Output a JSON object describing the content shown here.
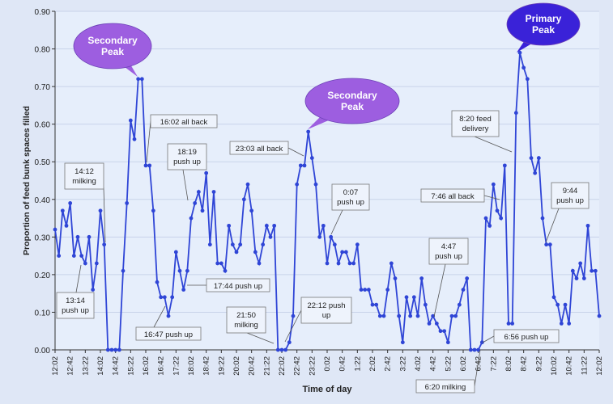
{
  "chart_data": {
    "type": "line",
    "title": "",
    "xlabel": "Time of day",
    "ylabel": "Proportion of feed bunk spaces filled",
    "ylim": [
      0,
      0.9
    ],
    "yticks": [
      "0.00",
      "0.10",
      "0.20",
      "0.30",
      "0.40",
      "0.50",
      "0.60",
      "0.70",
      "0.80",
      "0.90"
    ],
    "xticks": [
      "12:02",
      "12:42",
      "13:22",
      "14:02",
      "14:42",
      "15:22",
      "16:02",
      "16:42",
      "17:22",
      "18:02",
      "18:42",
      "19:22",
      "20:02",
      "20:42",
      "21:22",
      "22:02",
      "22:42",
      "23:22",
      "0:02",
      "0:42",
      "1:22",
      "2:02",
      "2:42",
      "3:22",
      "4:02",
      "4:42",
      "5:22",
      "6:02",
      "6:42",
      "7:22",
      "8:02",
      "8:42",
      "9:22",
      "10:02",
      "10:42",
      "11:22",
      "12:02"
    ],
    "x_step_minutes": 5,
    "series": [
      {
        "name": "",
        "color": "#2f45d6",
        "values": [
          0.32,
          0.25,
          0.37,
          0.33,
          0.39,
          0.25,
          0.3,
          0.25,
          0.23,
          0.3,
          0.16,
          0.23,
          0.37,
          0.28,
          0.0,
          0.0,
          0.0,
          0.0,
          0.21,
          0.39,
          0.61,
          0.56,
          0.72,
          0.72,
          0.49,
          0.49,
          0.37,
          0.18,
          0.14,
          0.14,
          0.09,
          0.14,
          0.26,
          0.21,
          0.16,
          0.21,
          0.35,
          0.39,
          0.42,
          0.37,
          0.47,
          0.28,
          0.42,
          0.23,
          0.23,
          0.21,
          0.33,
          0.28,
          0.26,
          0.28,
          0.4,
          0.44,
          0.37,
          0.26,
          0.23,
          0.28,
          0.33,
          0.3,
          0.33,
          0.0,
          0.0,
          0.0,
          0.02,
          0.09,
          0.44,
          0.49,
          0.49,
          0.58,
          0.51,
          0.44,
          0.3,
          0.33,
          0.23,
          0.3,
          0.28,
          0.23,
          0.26,
          0.26,
          0.23,
          0.23,
          0.28,
          0.16,
          0.16,
          0.16,
          0.12,
          0.12,
          0.09,
          0.09,
          0.16,
          0.23,
          0.19,
          0.09,
          0.02,
          0.14,
          0.09,
          0.14,
          0.09,
          0.19,
          0.12,
          0.07,
          0.09,
          0.07,
          0.05,
          0.05,
          0.02,
          0.09,
          0.09,
          0.12,
          0.16,
          0.19,
          0.0,
          0.0,
          0.0,
          0.02,
          0.35,
          0.33,
          0.44,
          0.37,
          0.35,
          0.49,
          0.07,
          0.07,
          0.63,
          0.79,
          0.75,
          0.72,
          0.51,
          0.47,
          0.51,
          0.35,
          0.28,
          0.28,
          0.14,
          0.12,
          0.07,
          0.12,
          0.07,
          0.21,
          0.19,
          0.23,
          0.19,
          0.33,
          0.21,
          0.21,
          0.09
        ]
      }
    ],
    "annotations": [
      {
        "text": "14:12\nmilking",
        "x_index": 2
      },
      {
        "text": "13:14\npush up",
        "x_index": 2
      },
      {
        "text": "16:02 all back",
        "x_index": 24
      },
      {
        "text": "18:19\npush up",
        "x_index": 39
      },
      {
        "text": "16:47 push up",
        "x_index": 33
      },
      {
        "text": "17:44 push up",
        "x_index": 36
      },
      {
        "text": "21:50\nmilking",
        "x_index": 59
      },
      {
        "text": "23:03 all back",
        "x_index": 66
      },
      {
        "text": "22:12 push\nup",
        "x_index": 63
      },
      {
        "text": "0:07\npush up",
        "x_index": 73
      },
      {
        "text": "4:47\npush up",
        "x_index": 101
      },
      {
        "text": "7:46 all back",
        "x_index": 118
      },
      {
        "text": "8:20 feed\ndelivery",
        "x_index": 121
      },
      {
        "text": "6:56 push up",
        "x_index": 114
      },
      {
        "text": "6:20 milking",
        "x_index": 108
      },
      {
        "text": "9:44\npush up",
        "x_index": 132
      }
    ],
    "callouts": [
      {
        "text": "Secondary\nPeak",
        "color": "#9d5ee0"
      },
      {
        "text": "Secondary\nPeak",
        "color": "#9d5ee0"
      },
      {
        "text": "Primary\nPeak",
        "color": "#3a22d8"
      }
    ]
  }
}
